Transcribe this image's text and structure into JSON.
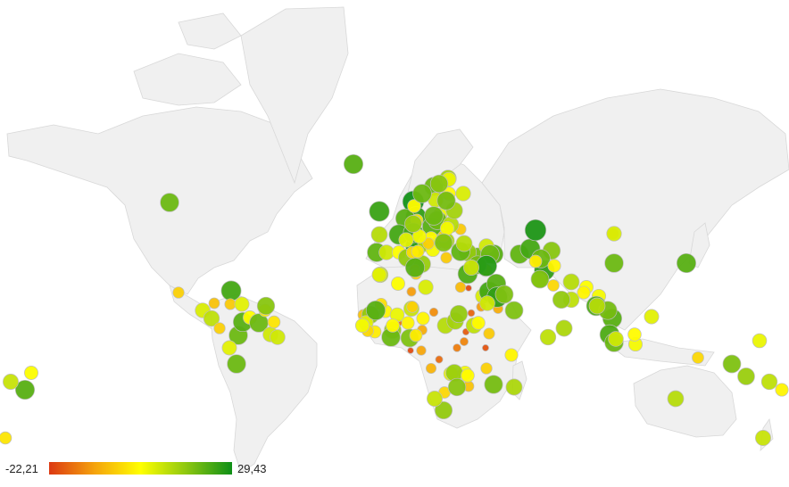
{
  "legend": {
    "min_label": "-22,21",
    "max_label": "29,43",
    "colors": [
      "#dc3912",
      "#f5a30c",
      "#ffff00",
      "#8dc710",
      "#0e8f17"
    ]
  },
  "scale": {
    "min": -22.21,
    "max": 29.43
  },
  "bubbles": [
    {
      "v": 0
    },
    {
      "v": 20
    },
    {
      "v": 4
    },
    {
      "v": 22
    },
    {
      "v": 10
    },
    {
      "v": 29
    },
    {
      "v": 26
    },
    {
      "v": 25
    },
    {
      "v": 22
    },
    {
      "v": 24
    },
    {
      "v": 27
    },
    {
      "v": 20
    },
    {
      "v": 14
    },
    {
      "v": 3
    },
    {
      "v": 6
    },
    {
      "v": 9
    },
    {
      "v": 1
    },
    {
      "v": -4
    },
    {
      "v": 18
    },
    {
      "v": 24
    },
    {
      "v": 22
    },
    {
      "v": 12
    },
    {
      "v": 15
    },
    {
      "v": 8
    },
    {
      "v": -6
    },
    {
      "v": 11
    },
    {
      "v": 4
    },
    {
      "v": -4
    },
    {
      "v": 5
    },
    {
      "v": 13
    },
    {
      "v": 19
    },
    {
      "v": 16
    },
    {
      "v": 22
    },
    {
      "v": -3
    },
    {
      "v": 10
    },
    {
      "v": 2
    },
    {
      "v": -10
    },
    {
      "v": -12
    },
    {
      "v": -20
    },
    {
      "v": -8
    },
    {
      "v": -15
    },
    {
      "v": 2
    },
    {
      "v": -9
    },
    {
      "v": -7
    },
    {
      "v": -16
    },
    {
      "v": -14
    },
    {
      "v": -13
    },
    {
      "v": -18
    },
    {
      "v": -19
    },
    {
      "v": 12
    },
    {
      "v": 14
    },
    {
      "v": 16
    },
    {
      "v": 11
    },
    {
      "v": 8
    },
    {
      "v": -6
    },
    {
      "v": -17
    },
    {
      "v": -10
    },
    {
      "v": -20
    },
    {
      "v": -8
    },
    {
      "v": 3
    },
    {
      "v": -4
    },
    {
      "v": -7
    },
    {
      "v": 18
    },
    {
      "v": 2
    },
    {
      "v": -3
    },
    {
      "v": 5
    },
    {
      "v": 6
    },
    {
      "v": -5
    },
    {
      "v": 15
    },
    {
      "v": 16
    },
    {
      "v": -2
    },
    {
      "v": 10
    },
    {
      "v": 17
    },
    {
      "v": 3
    },
    {
      "v": 19
    },
    {
      "v": 13
    },
    {
      "v": 7
    },
    {
      "v": 2
    },
    {
      "v": -5
    },
    {
      "v": 1
    },
    {
      "v": 16
    },
    {
      "v": 7
    },
    {
      "v": -2
    },
    {
      "v": 5
    },
    {
      "v": 15
    },
    {
      "v": 20
    },
    {
      "v": 18
    },
    {
      "v": 1
    },
    {
      "v": 6
    },
    {
      "v": 3
    },
    {
      "v": -1
    },
    {
      "v": -3
    },
    {
      "v": 22
    },
    {
      "v": 21
    },
    {
      "v": 9
    },
    {
      "v": 12
    },
    {
      "v": 4
    },
    {
      "v": 16
    },
    {
      "v": 22
    },
    {
      "v": -1
    },
    {
      "v": 1
    },
    {
      "v": 3
    },
    {
      "v": -3
    },
    {
      "v": 20
    },
    {
      "v": 21
    },
    {
      "v": 12
    },
    {
      "v": 5
    },
    {
      "v": 7
    },
    {
      "v": 15
    },
    {
      "v": 3
    },
    {
      "v": 20
    },
    {
      "v": 12
    },
    {
      "v": -2
    },
    {
      "v": 14
    },
    {
      "v": 8
    },
    {
      "v": 6
    },
    {
      "v": 19
    },
    {
      "v": 17
    },
    {
      "v": 20
    },
    {
      "v": 5
    },
    {
      "v": 18
    },
    {
      "v": 9
    },
    {
      "v": 1
    },
    {
      "v": 20
    },
    {
      "v": 23
    },
    {
      "v": 19
    },
    {
      "v": 24
    },
    {
      "v": 22
    },
    {
      "v": 26
    },
    {
      "v": 18
    },
    {
      "v": 27
    },
    {
      "v": 9
    },
    {
      "v": 10
    },
    {
      "v": 21
    },
    {
      "v": 24
    },
    {
      "v": 28
    },
    {
      "v": 26
    },
    {
      "v": 17
    },
    {
      "v": 20
    },
    {
      "v": 7
    },
    {
      "v": 2
    },
    {
      "v": 12
    },
    {
      "v": 4
    },
    {
      "v": 11
    },
    {
      "v": 2
    },
    {
      "v": 5
    },
    {
      "v": 23
    },
    {
      "v": 22
    },
    {
      "v": 19
    },
    {
      "v": 23
    },
    {
      "v": 20
    },
    {
      "v": 5
    },
    {
      "v": 7
    },
    {
      "v": -5
    },
    {
      "v": 20
    },
    {
      "v": 22
    },
    {
      "v": 1
    },
    {
      "v": 18
    },
    {
      "v": -2
    },
    {
      "v": 8
    },
    {
      "v": 11
    },
    {
      "v": 16
    },
    {
      "v": 13
    },
    {
      "v": 12
    },
    {
      "v": 9
    },
    {
      "v": 3
    },
    {
      "v": -2
    },
    {
      "v": 18
    },
    {
      "v": 15
    },
    {
      "v": 6
    },
    {
      "v": 11
    },
    {
      "v": 2
    },
    {
      "v": 10
    },
    {
      "v": 12
    },
    {
      "v": 22
    },
    {
      "v": -3
    },
    {
      "v": 8
    },
    {
      "v": 11
    },
    {
      "v": -5
    },
    {
      "v": -3
    },
    {
      "v": 24
    },
    {
      "v": -4
    },
    {
      "v": 20
    },
    {
      "v": 7
    },
    {
      "v": 20
    },
    {
      "v": 7
    },
    {
      "v": 22
    },
    {
      "v": 4
    },
    {
      "v": 20
    },
    {
      "v": 1
    },
    {
      "v": 9
    },
    {
      "v": 0
    },
    {
      "v": 17
    },
    {
      "v": 9
    }
  ]
}
